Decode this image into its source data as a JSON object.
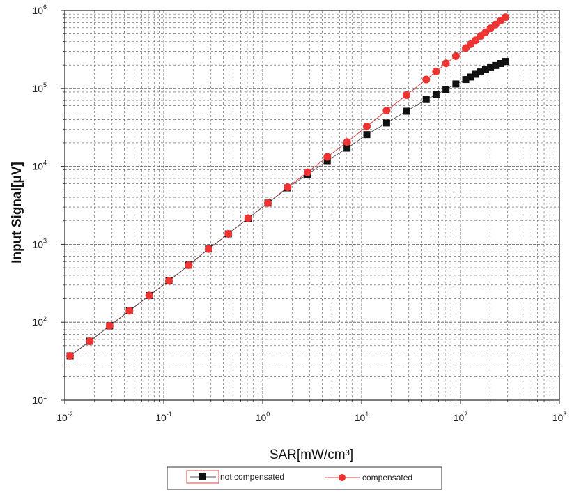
{
  "chart_data": {
    "type": "scatter",
    "title": "",
    "xlabel": "SAR[mW/cm³]",
    "ylabel": "Input Signal[μV]",
    "x_scale": "log",
    "y_scale": "log",
    "xlim": [
      0.01,
      1000
    ],
    "ylim": [
      10,
      1000000
    ],
    "x_ticks": [
      {
        "base": "10",
        "exp": "-2"
      },
      {
        "base": "10",
        "exp": "-1"
      },
      {
        "base": "10",
        "exp": "0"
      },
      {
        "base": "10",
        "exp": "1"
      },
      {
        "base": "10",
        "exp": "2"
      },
      {
        "base": "10",
        "exp": "3"
      }
    ],
    "y_ticks": [
      {
        "base": "10",
        "exp": "1"
      },
      {
        "base": "10",
        "exp": "2"
      },
      {
        "base": "10",
        "exp": "3"
      },
      {
        "base": "10",
        "exp": "4"
      },
      {
        "base": "10",
        "exp": "5"
      },
      {
        "base": "10",
        "exp": "6"
      }
    ],
    "grid": true,
    "legend_position": "bottom",
    "colors": {
      "not_compensated": "#111111",
      "compensated": "#ee3333",
      "line": "#d44444"
    },
    "series": [
      {
        "name": "not compensated",
        "marker": "square",
        "x": [
          0.0113,
          0.0179,
          0.0284,
          0.045,
          0.0713,
          0.113,
          0.179,
          0.284,
          0.45,
          0.713,
          1.13,
          1.79,
          2.84,
          4.5,
          7.13,
          11.3,
          17.9,
          28.4,
          45,
          56.6,
          71.3,
          89.8,
          113,
          127,
          142,
          160,
          179,
          201,
          226,
          254,
          284
        ],
        "y": [
          37,
          57,
          90,
          140,
          220,
          340,
          540,
          870,
          1360,
          2160,
          3380,
          5290,
          7900,
          11800,
          17100,
          25500,
          36000,
          51000,
          72000,
          83000,
          97000,
          114000,
          130000,
          140000,
          152000,
          163000,
          175000,
          185000,
          197000,
          209000,
          222000
        ]
      },
      {
        "name": "compensated",
        "marker": "circle",
        "x": [
          0.0113,
          0.0179,
          0.0284,
          0.045,
          0.0713,
          0.113,
          0.179,
          0.284,
          0.45,
          0.713,
          1.13,
          1.79,
          2.84,
          4.5,
          7.13,
          11.3,
          17.9,
          28.4,
          45,
          56.6,
          71.3,
          89.8,
          113,
          127,
          142,
          160,
          179,
          201,
          226,
          254,
          284
        ],
        "y": [
          37,
          57,
          90,
          140,
          220,
          340,
          540,
          870,
          1360,
          2160,
          3380,
          5400,
          8400,
          13200,
          20500,
          32500,
          52000,
          82000,
          130000,
          165000,
          210000,
          260000,
          330000,
          370000,
          415000,
          470000,
          525000,
          590000,
          660000,
          740000,
          820000
        ]
      }
    ]
  }
}
